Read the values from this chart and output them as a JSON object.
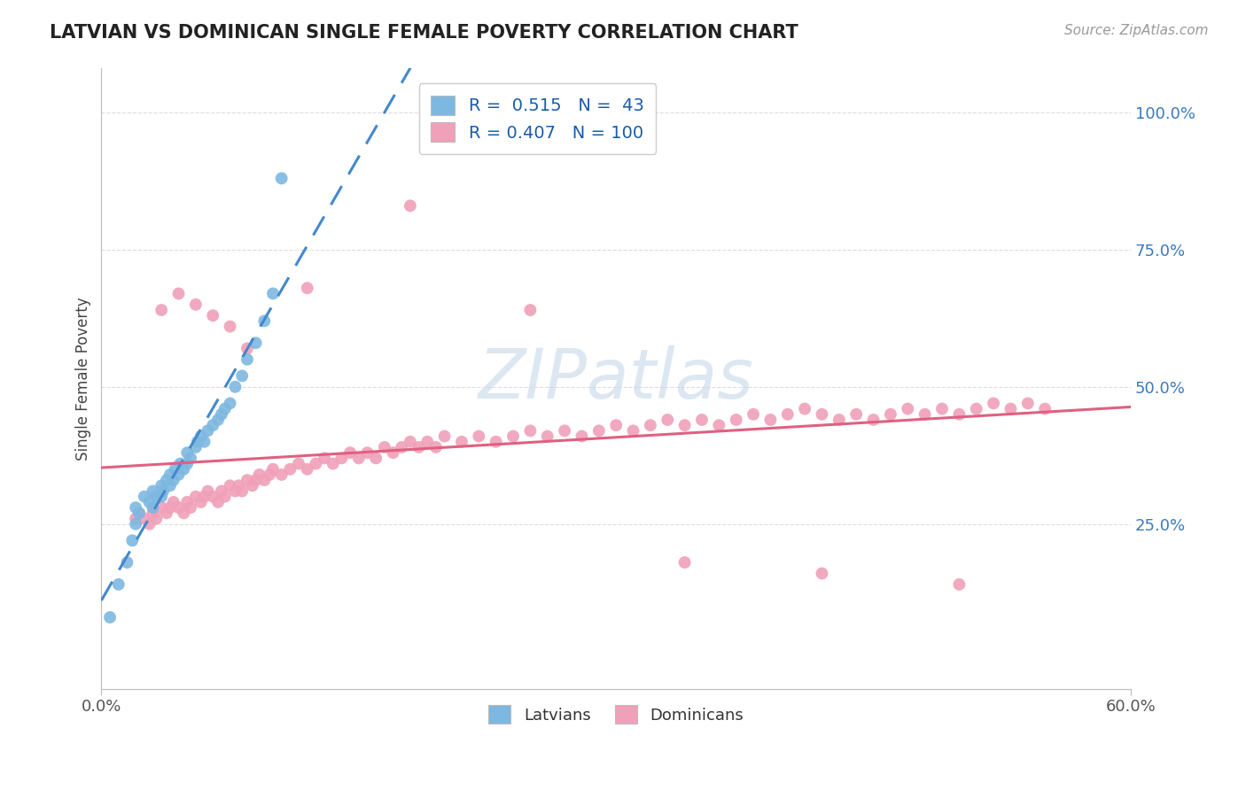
{
  "title": "LATVIAN VS DOMINICAN SINGLE FEMALE POVERTY CORRELATION CHART",
  "source_text": "Source: ZipAtlas.com",
  "ylabel": "Single Female Poverty",
  "xlim": [
    0.0,
    0.6
  ],
  "ylim": [
    -0.05,
    1.08
  ],
  "ytick_labels": [
    "25.0%",
    "50.0%",
    "75.0%",
    "100.0%"
  ],
  "ytick_values": [
    0.25,
    0.5,
    0.75,
    1.0
  ],
  "xtick_labels": [
    "0.0%",
    "60.0%"
  ],
  "xtick_values": [
    0.0,
    0.6
  ],
  "latvian_color": "#7db8e0",
  "dominican_color": "#f0a0b8",
  "trend_latvian_color": "#4488cc",
  "trend_dominican_color": "#e06080",
  "trend_latvian_dashed": true,
  "trend_dominican_dashed": false,
  "R_latvian": 0.515,
  "N_latvian": 43,
  "R_dominican": 0.407,
  "N_dominican": 100,
  "latvian_x": [
    0.005,
    0.01,
    0.015,
    0.018,
    0.02,
    0.02,
    0.022,
    0.025,
    0.028,
    0.03,
    0.03,
    0.032,
    0.035,
    0.035,
    0.036,
    0.038,
    0.04,
    0.04,
    0.042,
    0.043,
    0.045,
    0.046,
    0.048,
    0.05,
    0.05,
    0.052,
    0.055,
    0.056,
    0.058,
    0.06,
    0.062,
    0.065,
    0.068,
    0.07,
    0.072,
    0.075,
    0.078,
    0.082,
    0.085,
    0.09,
    0.095,
    0.1,
    0.105
  ],
  "latvian_y": [
    0.08,
    0.14,
    0.18,
    0.22,
    0.25,
    0.28,
    0.27,
    0.3,
    0.29,
    0.28,
    0.31,
    0.3,
    0.3,
    0.32,
    0.31,
    0.33,
    0.32,
    0.34,
    0.33,
    0.35,
    0.34,
    0.36,
    0.35,
    0.36,
    0.38,
    0.37,
    0.39,
    0.4,
    0.41,
    0.4,
    0.42,
    0.43,
    0.44,
    0.45,
    0.46,
    0.47,
    0.5,
    0.52,
    0.55,
    0.58,
    0.62,
    0.67,
    0.88
  ],
  "dominican_x": [
    0.02,
    0.022,
    0.025,
    0.028,
    0.03,
    0.032,
    0.035,
    0.038,
    0.04,
    0.042,
    0.045,
    0.048,
    0.05,
    0.052,
    0.055,
    0.058,
    0.06,
    0.062,
    0.065,
    0.068,
    0.07,
    0.072,
    0.075,
    0.078,
    0.08,
    0.082,
    0.085,
    0.088,
    0.09,
    0.092,
    0.095,
    0.098,
    0.1,
    0.105,
    0.11,
    0.115,
    0.12,
    0.125,
    0.13,
    0.135,
    0.14,
    0.145,
    0.15,
    0.155,
    0.16,
    0.165,
    0.17,
    0.175,
    0.18,
    0.185,
    0.19,
    0.195,
    0.2,
    0.21,
    0.22,
    0.23,
    0.24,
    0.25,
    0.26,
    0.27,
    0.28,
    0.29,
    0.3,
    0.31,
    0.32,
    0.33,
    0.34,
    0.35,
    0.36,
    0.37,
    0.38,
    0.39,
    0.4,
    0.41,
    0.42,
    0.43,
    0.44,
    0.45,
    0.46,
    0.47,
    0.48,
    0.49,
    0.5,
    0.51,
    0.52,
    0.53,
    0.54,
    0.55,
    0.035,
    0.045,
    0.055,
    0.065,
    0.075,
    0.085,
    0.12,
    0.18,
    0.25,
    0.34,
    0.42,
    0.5
  ],
  "dominican_y": [
    0.26,
    0.27,
    0.26,
    0.25,
    0.27,
    0.26,
    0.28,
    0.27,
    0.28,
    0.29,
    0.28,
    0.27,
    0.29,
    0.28,
    0.3,
    0.29,
    0.3,
    0.31,
    0.3,
    0.29,
    0.31,
    0.3,
    0.32,
    0.31,
    0.32,
    0.31,
    0.33,
    0.32,
    0.33,
    0.34,
    0.33,
    0.34,
    0.35,
    0.34,
    0.35,
    0.36,
    0.35,
    0.36,
    0.37,
    0.36,
    0.37,
    0.38,
    0.37,
    0.38,
    0.37,
    0.39,
    0.38,
    0.39,
    0.4,
    0.39,
    0.4,
    0.39,
    0.41,
    0.4,
    0.41,
    0.4,
    0.41,
    0.42,
    0.41,
    0.42,
    0.41,
    0.42,
    0.43,
    0.42,
    0.43,
    0.44,
    0.43,
    0.44,
    0.43,
    0.44,
    0.45,
    0.44,
    0.45,
    0.46,
    0.45,
    0.44,
    0.45,
    0.44,
    0.45,
    0.46,
    0.45,
    0.46,
    0.45,
    0.46,
    0.47,
    0.46,
    0.47,
    0.46,
    0.64,
    0.67,
    0.65,
    0.63,
    0.61,
    0.57,
    0.68,
    0.83,
    0.64,
    0.18,
    0.16,
    0.14
  ],
  "background_color": "#ffffff",
  "grid_color": "#dddddd",
  "watermark_text": "ZIPatlas",
  "watermark_color_hex": "#c0d4e8"
}
